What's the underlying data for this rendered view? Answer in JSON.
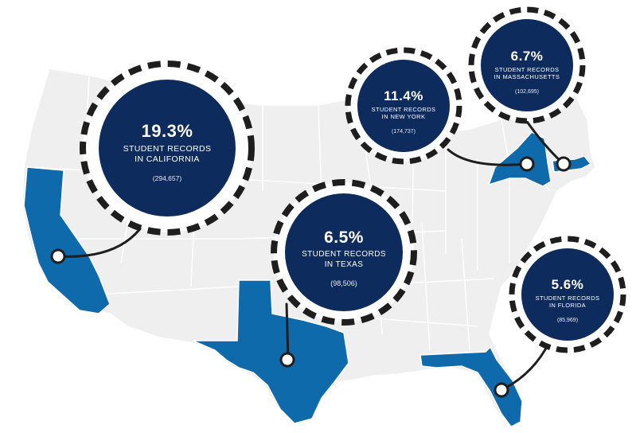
{
  "colors": {
    "highlight_state": "#0e6aab",
    "land": "#efefef",
    "borders": "#ffffff",
    "bubble_fill": "#0d2b5c",
    "dash_ring": "#1e1e1e",
    "connector": "#1e1e1e"
  },
  "callouts": [
    {
      "id": "california",
      "percent": "19.3%",
      "label_line1": "STUDENT RECORDS",
      "label_line2": "IN CALIFORNIA",
      "count": "(294,657)"
    },
    {
      "id": "texas",
      "percent": "6.5%",
      "label_line1": "STUDENT RECORDS",
      "label_line2": "IN TEXAS",
      "count": "(98,506)"
    },
    {
      "id": "new-york",
      "percent": "11.4%",
      "label_line1": "STUDENT RECORDS",
      "label_line2": "IN NEW YORK",
      "count": "(174,737)"
    },
    {
      "id": "massachusetts",
      "percent": "6.7%",
      "label_line1": "STUDENT RECORDS",
      "label_line2": "IN MASSACHUSETTS",
      "count": "(102,695)"
    },
    {
      "id": "florida",
      "percent": "5.6%",
      "label_line1": "STUDENT RECORDS",
      "label_line2": "IN FLORIDA",
      "count": "(85,969)"
    }
  ]
}
